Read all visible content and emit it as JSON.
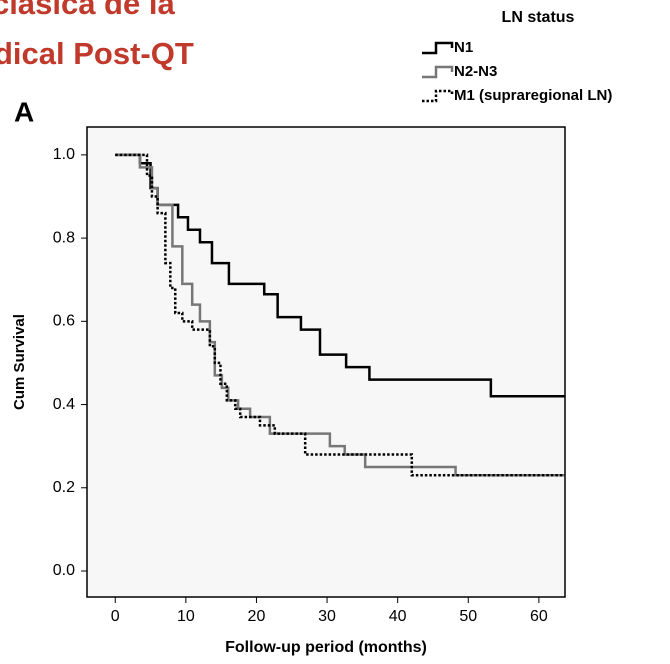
{
  "header_text": [
    "clásica de la",
    "dical Post-QT"
  ],
  "panel_label": "A",
  "chart_data": {
    "type": "step",
    "xlabel": "Follow-up period (months)",
    "ylabel": "Cum Survival",
    "legend_title": "LN status",
    "legend": "top-right",
    "xlim": [
      -4,
      63.7
    ],
    "ylim": [
      -0.0625,
      1.067
    ],
    "xticks": [
      0,
      10,
      20,
      30,
      40,
      50,
      60
    ],
    "yticks": [
      {
        "value": 0,
        "label": "0.0"
      },
      0.2,
      0.4,
      0.6,
      0.8,
      {
        "value": 1,
        "label": "1.0"
      }
    ],
    "series": [
      {
        "name": "N1",
        "color": "#000000",
        "dash": "solid",
        "x": [
          0,
          3.5,
          5.0,
          6.0,
          8.9,
          10.3,
          12.0,
          13.7,
          16.1,
          21.1,
          23.0,
          26.3,
          29.0,
          32.7,
          36.0,
          53.2,
          63.7
        ],
        "values": [
          1.0,
          0.98,
          0.92,
          0.88,
          0.85,
          0.82,
          0.79,
          0.74,
          0.69,
          0.665,
          0.61,
          0.58,
          0.52,
          0.49,
          0.46,
          0.42,
          0.42
        ]
      },
      {
        "name": "N2-N3",
        "color": "#777777",
        "dash": "solid",
        "x": [
          0,
          3.5,
          5.2,
          6.0,
          8.1,
          9.5,
          10.9,
          12.0,
          13.4,
          14.1,
          15.1,
          16.0,
          17.4,
          19.1,
          21.9,
          30.4,
          32.5,
          35.4,
          48.2,
          63.7
        ],
        "values": [
          1.0,
          0.97,
          0.92,
          0.88,
          0.78,
          0.69,
          0.64,
          0.6,
          0.55,
          0.47,
          0.44,
          0.41,
          0.39,
          0.37,
          0.33,
          0.3,
          0.28,
          0.25,
          0.23,
          0.23
        ]
      },
      {
        "name": "M1 (supraregional LN)",
        "color": "#000000",
        "dash": "dotted",
        "x": [
          0,
          4.5,
          5.2,
          6.0,
          7.1,
          7.8,
          8.5,
          9.5,
          10.9,
          13.4,
          14.1,
          14.9,
          15.8,
          17.0,
          17.7,
          20.5,
          22.6,
          26.9,
          42.0,
          63.7
        ],
        "values": [
          1.0,
          0.95,
          0.9,
          0.86,
          0.74,
          0.68,
          0.62,
          0.6,
          0.58,
          0.54,
          0.5,
          0.45,
          0.41,
          0.39,
          0.37,
          0.35,
          0.33,
          0.28,
          0.23,
          0.23
        ]
      }
    ]
  }
}
